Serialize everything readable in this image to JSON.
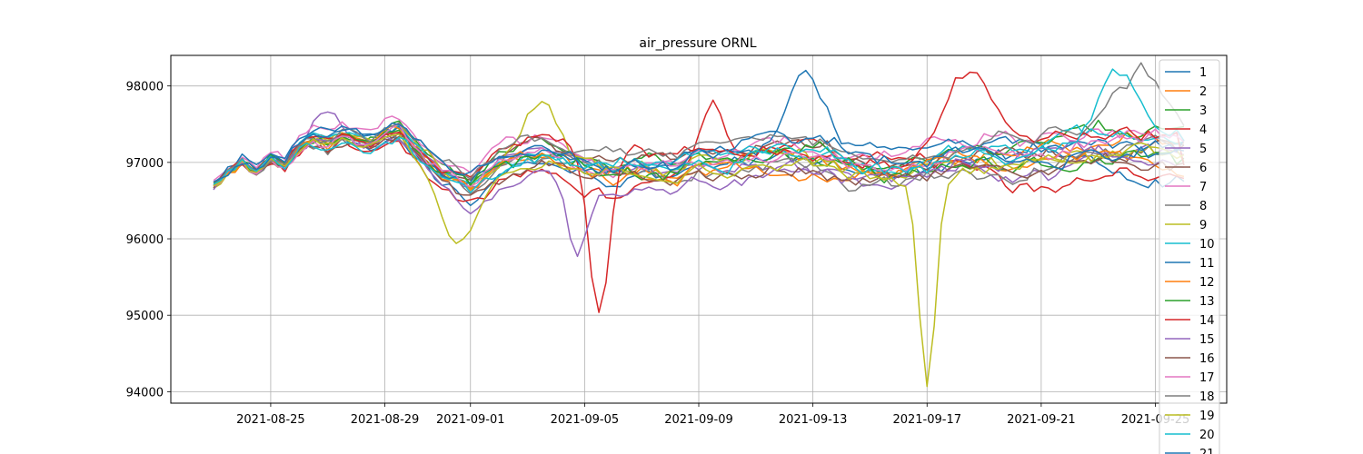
{
  "chart_data": {
    "type": "line",
    "title": "air_pressure ORNL",
    "xlabel": "",
    "ylabel": "",
    "x_start": "2021-08-23",
    "x_end": "2021-09-26",
    "points_per_day": 4,
    "xlim": [
      "2021-08-21T12:00",
      "2021-09-27T12:00"
    ],
    "ylim": [
      93850,
      98400
    ],
    "grid": true,
    "legend_position": "right, partially cut off at bottom",
    "x_ticks": [
      "2021-08-25",
      "2021-08-29",
      "2021-09-01",
      "2021-09-05",
      "2021-09-09",
      "2021-09-13",
      "2021-09-17",
      "2021-09-21",
      "2021-09-25"
    ],
    "y_ticks": [
      94000,
      95000,
      96000,
      97000,
      98000
    ],
    "series": [
      {
        "name": "1",
        "color": "#1f77b4"
      },
      {
        "name": "2",
        "color": "#ff7f0e"
      },
      {
        "name": "3",
        "color": "#2ca02c"
      },
      {
        "name": "4",
        "color": "#d62728"
      },
      {
        "name": "5",
        "color": "#9467bd"
      },
      {
        "name": "6",
        "color": "#8c564b"
      },
      {
        "name": "7",
        "color": "#e377c2"
      },
      {
        "name": "8",
        "color": "#7f7f7f"
      },
      {
        "name": "9",
        "color": "#bcbd22"
      },
      {
        "name": "10",
        "color": "#17becf"
      },
      {
        "name": "11",
        "color": "#1f77b4"
      },
      {
        "name": "12",
        "color": "#ff7f0e"
      },
      {
        "name": "13",
        "color": "#2ca02c"
      },
      {
        "name": "14",
        "color": "#d62728"
      },
      {
        "name": "15",
        "color": "#9467bd"
      },
      {
        "name": "16",
        "color": "#8c564b"
      },
      {
        "name": "17",
        "color": "#e377c2"
      },
      {
        "name": "18",
        "color": "#7f7f7f"
      },
      {
        "name": "19",
        "color": "#bcbd22"
      },
      {
        "name": "20",
        "color": "#17becf"
      },
      {
        "name": "21",
        "color": "#1f77b4"
      }
    ],
    "base_profile": [
      [
        "2021-08-23T00:00",
        96700
      ],
      [
        "2021-08-23T12:00",
        96850
      ],
      [
        "2021-08-24T00:00",
        97000
      ],
      [
        "2021-08-24T12:00",
        96850
      ],
      [
        "2021-08-25T00:00",
        97050
      ],
      [
        "2021-08-25T12:00",
        96950
      ],
      [
        "2021-08-26T00:00",
        97200
      ],
      [
        "2021-08-26T12:00",
        97300
      ],
      [
        "2021-08-27T00:00",
        97250
      ],
      [
        "2021-08-27T12:00",
        97350
      ],
      [
        "2021-08-28T00:00",
        97300
      ],
      [
        "2021-08-28T12:00",
        97250
      ],
      [
        "2021-08-29T00:00",
        97350
      ],
      [
        "2021-08-29T12:00",
        97400
      ],
      [
        "2021-08-30T00:00",
        97200
      ],
      [
        "2021-08-30T12:00",
        97000
      ],
      [
        "2021-08-31T00:00",
        96850
      ],
      [
        "2021-08-31T12:00",
        96750
      ],
      [
        "2021-09-01T00:00",
        96650
      ],
      [
        "2021-09-01T12:00",
        96800
      ],
      [
        "2021-09-02T00:00",
        96950
      ],
      [
        "2021-09-03T00:00",
        97100
      ],
      [
        "2021-09-04T00:00",
        97100
      ],
      [
        "2021-09-05T00:00",
        96950
      ],
      [
        "2021-09-06T00:00",
        96900
      ],
      [
        "2021-09-07T00:00",
        96950
      ],
      [
        "2021-09-08T00:00",
        96900
      ],
      [
        "2021-09-09T00:00",
        97050
      ],
      [
        "2021-09-10T00:00",
        96950
      ],
      [
        "2021-09-11T00:00",
        97050
      ],
      [
        "2021-09-12T00:00",
        97100
      ],
      [
        "2021-09-13T00:00",
        97050
      ],
      [
        "2021-09-14T00:00",
        97000
      ],
      [
        "2021-09-15T00:00",
        96950
      ],
      [
        "2021-09-16T00:00",
        96900
      ],
      [
        "2021-09-17T00:00",
        96950
      ],
      [
        "2021-09-18T00:00",
        97050
      ],
      [
        "2021-09-19T00:00",
        97100
      ],
      [
        "2021-09-20T00:00",
        97050
      ],
      [
        "2021-09-21T00:00",
        97100
      ],
      [
        "2021-09-22T00:00",
        97150
      ],
      [
        "2021-09-23T00:00",
        97200
      ],
      [
        "2021-09-24T00:00",
        97200
      ],
      [
        "2021-09-25T00:00",
        97200
      ],
      [
        "2021-09-26T00:00",
        97150
      ]
    ],
    "spread_profile": [
      [
        "2021-08-23T00:00",
        60
      ],
      [
        "2021-08-25T00:00",
        110
      ],
      [
        "2021-08-27T00:00",
        200
      ],
      [
        "2021-08-29T00:00",
        220
      ],
      [
        "2021-08-31T00:00",
        300
      ],
      [
        "2021-09-03T00:00",
        380
      ],
      [
        "2021-09-08T00:00",
        420
      ],
      [
        "2021-09-13T00:00",
        480
      ],
      [
        "2021-09-20T00:00",
        520
      ],
      [
        "2021-09-26T00:00",
        560
      ]
    ],
    "dips": [
      {
        "series": "14",
        "center": "2021-09-05T12:00",
        "depth": 2150,
        "width_days": 0.5
      },
      {
        "series": "19",
        "center": "2021-09-17T00:00",
        "depth": 2750,
        "width_days": 0.4
      },
      {
        "series": "15",
        "center": "2021-09-04T18:00",
        "depth": 900,
        "width_days": 0.5
      },
      {
        "series": "19",
        "center": "2021-08-31T12:00",
        "depth": 700,
        "width_days": 0.7
      },
      {
        "series": "14",
        "center": "2021-09-26T06:00",
        "depth": 1600,
        "width_days": 0.2
      }
    ],
    "spikes": [
      {
        "series": "14",
        "center": "2021-09-18T12:00",
        "height": 1050,
        "width_days": 1.2
      },
      {
        "series": "4",
        "center": "2021-09-09T12:00",
        "height": 900,
        "width_days": 0.6
      },
      {
        "series": "11",
        "center": "2021-09-12T18:00",
        "height": 850,
        "width_days": 0.8
      },
      {
        "series": "20",
        "center": "2021-09-23T18:00",
        "height": 900,
        "width_days": 1.0
      },
      {
        "series": "18",
        "center": "2021-09-24T12:00",
        "height": 800,
        "width_days": 1.2
      },
      {
        "series": "9",
        "center": "2021-09-03T12:00",
        "height": 650,
        "width_days": 0.8
      },
      {
        "series": "5",
        "center": "2021-08-27T00:00",
        "height": 450,
        "width_days": 0.6
      }
    ]
  }
}
